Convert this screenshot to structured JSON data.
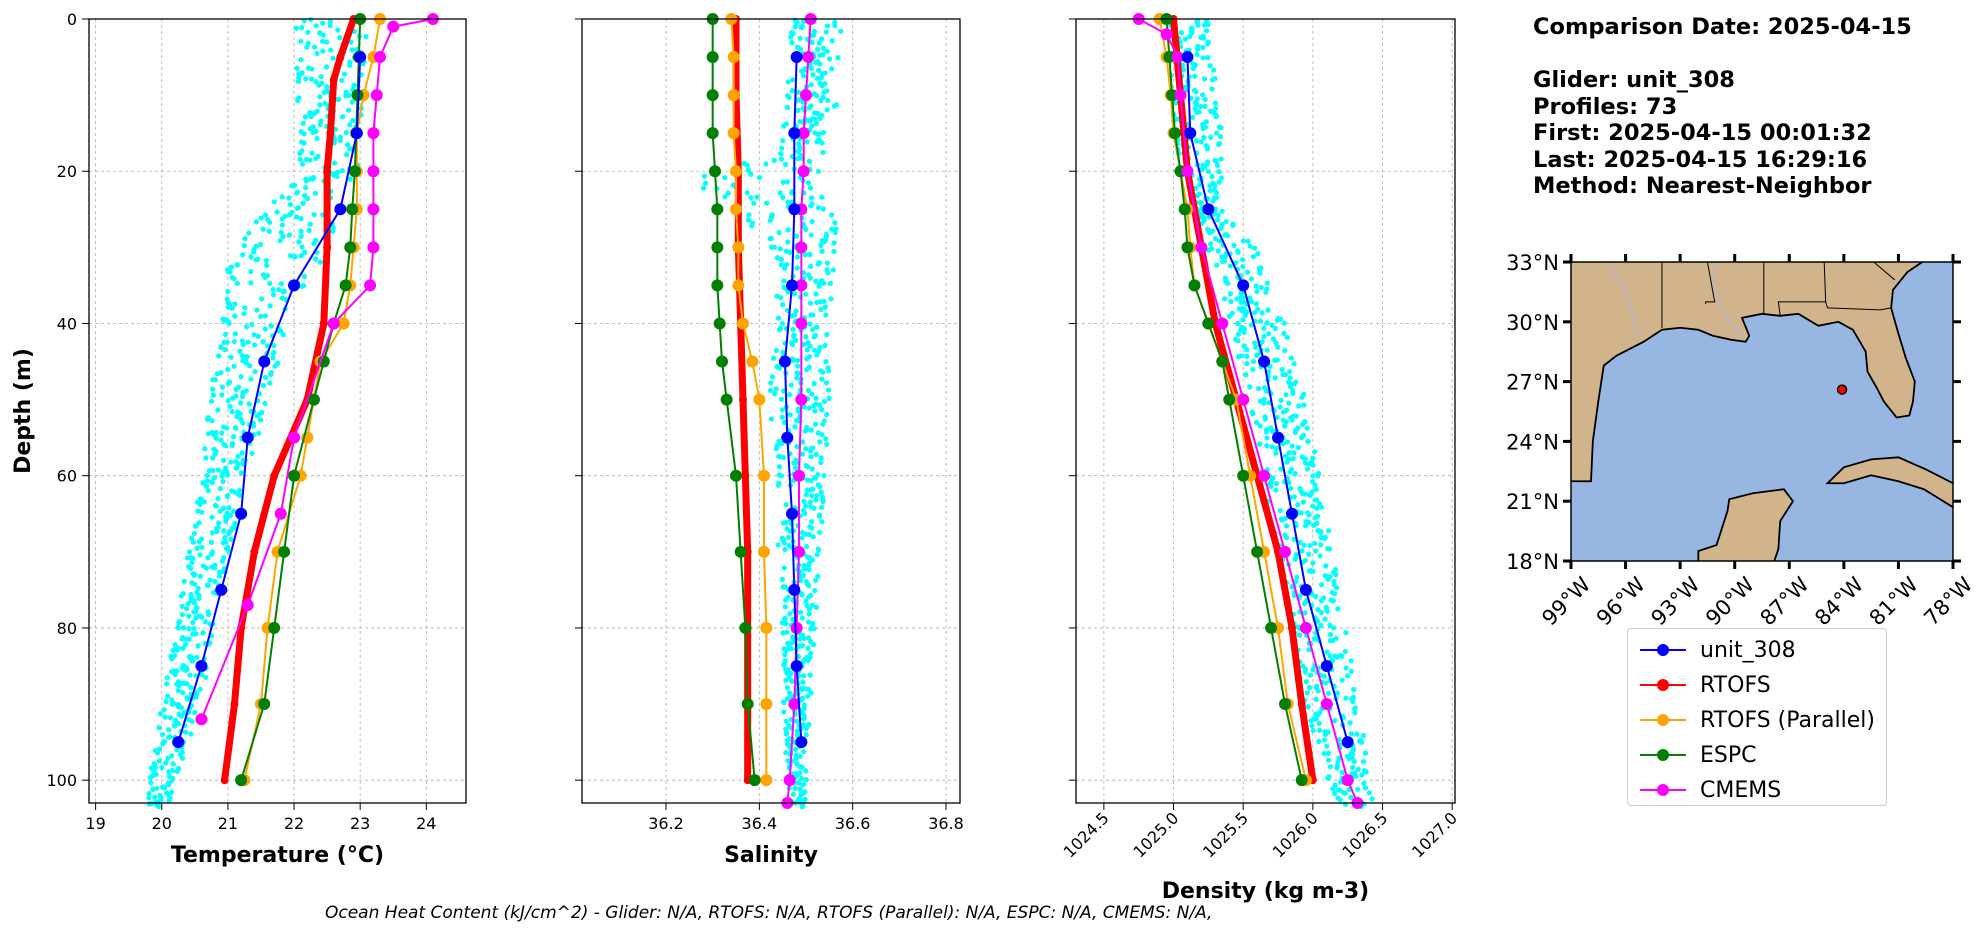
{
  "chart_data": [
    {
      "type": "line",
      "xlabel": "Temperature (°C)",
      "ylabel": "Depth (m)",
      "xlim": [
        18.9,
        24.6
      ],
      "ylim": [
        103,
        0
      ],
      "xticks": [
        19,
        20,
        21,
        22,
        23,
        24
      ],
      "yticks": [
        0,
        20,
        40,
        60,
        80,
        100
      ],
      "grid": true,
      "glider_scatter_envelope": {
        "depth": [
          0,
          20,
          30,
          40,
          50,
          60,
          70,
          80,
          90,
          100,
          103
        ],
        "min": [
          22.0,
          22.1,
          21.0,
          20.9,
          20.7,
          20.6,
          20.4,
          20.2,
          20.0,
          19.8,
          19.7
        ],
        "max": [
          23.1,
          23.0,
          22.5,
          21.9,
          21.6,
          21.3,
          21.0,
          20.8,
          20.6,
          20.2,
          20.1
        ]
      },
      "series": [
        {
          "name": "unit_308",
          "depth": [
            5,
            15,
            25,
            35,
            45,
            55,
            65,
            75,
            85,
            95
          ],
          "values": [
            23.0,
            22.95,
            22.7,
            22.0,
            21.55,
            21.3,
            21.2,
            20.9,
            20.6,
            20.25
          ]
        },
        {
          "name": "RTOFS",
          "depth": [
            0,
            5,
            8,
            15,
            20,
            30,
            40,
            50,
            60,
            70,
            80,
            90,
            100
          ],
          "values": [
            22.9,
            22.7,
            22.6,
            22.55,
            22.5,
            22.5,
            22.45,
            22.2,
            21.7,
            21.4,
            21.2,
            21.1,
            20.95
          ]
        },
        {
          "name": "RTOFS (Parallel)",
          "depth": [
            0,
            5,
            10,
            15,
            20,
            25,
            30,
            35,
            40,
            45,
            50,
            55,
            60,
            70,
            80,
            90,
            100
          ],
          "values": [
            23.3,
            23.2,
            23.05,
            22.95,
            22.95,
            22.95,
            22.9,
            22.85,
            22.75,
            22.4,
            22.3,
            22.2,
            22.1,
            21.75,
            21.6,
            21.5,
            21.25
          ]
        },
        {
          "name": "ESPC",
          "depth": [
            0,
            5,
            10,
            15,
            20,
            25,
            30,
            35,
            40,
            45,
            50,
            60,
            70,
            80,
            90,
            100
          ],
          "values": [
            23.0,
            22.98,
            22.96,
            22.94,
            22.92,
            22.88,
            22.85,
            22.78,
            22.6,
            22.45,
            22.3,
            22.0,
            21.85,
            21.7,
            21.55,
            21.2
          ]
        },
        {
          "name": "CMEMS",
          "depth": [
            0,
            1,
            5,
            10,
            15,
            20,
            25,
            30,
            35,
            40,
            55,
            65,
            77,
            92
          ],
          "values": [
            24.1,
            23.5,
            23.3,
            23.25,
            23.2,
            23.2,
            23.2,
            23.2,
            23.15,
            22.6,
            22.0,
            21.8,
            21.3,
            20.6
          ]
        }
      ]
    },
    {
      "type": "line",
      "xlabel": "Salinity",
      "xlim": [
        36.02,
        36.83
      ],
      "ylim": [
        103,
        0
      ],
      "xticks": [
        36.2,
        36.4,
        36.6,
        36.8
      ],
      "yticks": [
        0,
        20,
        40,
        60,
        80,
        100
      ],
      "grid": true,
      "glider_scatter_envelope": {
        "depth": [
          0,
          17,
          20,
          22,
          25,
          30,
          35,
          40,
          50,
          60,
          70,
          80,
          90,
          100,
          103
        ],
        "min": [
          36.47,
          36.44,
          36.28,
          36.28,
          36.36,
          36.43,
          36.44,
          36.43,
          36.42,
          36.44,
          36.44,
          36.45,
          36.45,
          36.46,
          36.47
        ],
        "max": [
          36.58,
          36.56,
          36.57,
          36.57,
          36.57,
          36.57,
          36.56,
          36.55,
          36.55,
          36.54,
          36.53,
          36.52,
          36.51,
          36.5,
          36.5
        ]
      },
      "series": [
        {
          "name": "unit_308",
          "depth": [
            5,
            15,
            25,
            35,
            45,
            55,
            65,
            75,
            85,
            95
          ],
          "values": [
            36.48,
            36.475,
            36.475,
            36.47,
            36.455,
            36.46,
            36.47,
            36.475,
            36.48,
            36.49
          ]
        },
        {
          "name": "RTOFS",
          "depth": [
            0,
            10,
            20,
            30,
            40,
            50,
            60,
            70,
            80,
            90,
            100
          ],
          "values": [
            36.35,
            36.35,
            36.355,
            36.355,
            36.36,
            36.365,
            36.37,
            36.375,
            36.375,
            36.375,
            36.375
          ]
        },
        {
          "name": "RTOFS (Parallel)",
          "depth": [
            0,
            5,
            10,
            15,
            20,
            25,
            30,
            35,
            40,
            45,
            50,
            60,
            70,
            80,
            90,
            100
          ],
          "values": [
            36.34,
            36.345,
            36.345,
            36.345,
            36.35,
            36.35,
            36.355,
            36.355,
            36.365,
            36.385,
            36.4,
            36.41,
            36.41,
            36.415,
            36.415,
            36.415
          ]
        },
        {
          "name": "ESPC",
          "depth": [
            0,
            5,
            10,
            15,
            20,
            25,
            30,
            35,
            40,
            45,
            50,
            60,
            70,
            80,
            90,
            100
          ],
          "values": [
            36.3,
            36.3,
            36.3,
            36.3,
            36.305,
            36.31,
            36.31,
            36.31,
            36.315,
            36.32,
            36.33,
            36.35,
            36.36,
            36.37,
            36.375,
            36.39
          ]
        },
        {
          "name": "CMEMS",
          "depth": [
            0,
            5,
            10,
            15,
            20,
            25,
            30,
            35,
            40,
            50,
            60,
            70,
            80,
            90,
            100,
            103
          ],
          "values": [
            36.51,
            36.505,
            36.5,
            36.495,
            36.495,
            36.49,
            36.49,
            36.49,
            36.49,
            36.49,
            36.485,
            36.485,
            36.48,
            36.475,
            36.465,
            36.46
          ]
        }
      ]
    },
    {
      "type": "line",
      "xlabel": "Density (kg m-3)",
      "xlim": [
        1024.3,
        1027.02
      ],
      "ylim": [
        103,
        0
      ],
      "xticks": [
        1024.5,
        1025.0,
        1025.5,
        1026.0,
        1026.5,
        1027.0
      ],
      "yticks": [
        0,
        20,
        40,
        60,
        80,
        100
      ],
      "grid": true,
      "glider_scatter_envelope": {
        "depth": [
          0,
          5,
          10,
          15,
          20,
          25,
          30,
          40,
          50,
          60,
          70,
          80,
          90,
          100,
          103
        ],
        "min": [
          1024.95,
          1024.97,
          1024.98,
          1025.0,
          1025.05,
          1025.15,
          1025.25,
          1025.4,
          1025.55,
          1025.65,
          1025.75,
          1025.85,
          1025.95,
          1026.1,
          1026.2
        ],
        "max": [
          1025.25,
          1025.3,
          1025.32,
          1025.35,
          1025.35,
          1025.35,
          1025.6,
          1025.8,
          1025.95,
          1026.05,
          1026.15,
          1026.25,
          1026.35,
          1026.4,
          1026.45
        ]
      },
      "series": [
        {
          "name": "unit_308",
          "depth": [
            5,
            15,
            25,
            35,
            45,
            55,
            65,
            75,
            85,
            95
          ],
          "values": [
            1025.1,
            1025.12,
            1025.25,
            1025.5,
            1025.65,
            1025.75,
            1025.85,
            1025.95,
            1026.1,
            1026.25
          ]
        },
        {
          "name": "RTOFS",
          "depth": [
            0,
            10,
            20,
            30,
            40,
            50,
            60,
            70,
            80,
            90,
            100
          ],
          "values": [
            1025.0,
            1025.05,
            1025.1,
            1025.2,
            1025.3,
            1025.45,
            1025.6,
            1025.75,
            1025.85,
            1025.92,
            1026.0
          ]
        },
        {
          "name": "RTOFS (Parallel)",
          "depth": [
            0,
            5,
            10,
            15,
            20,
            25,
            30,
            35,
            40,
            45,
            50,
            60,
            70,
            80,
            90,
            100
          ],
          "values": [
            1024.9,
            1024.95,
            1024.98,
            1025.0,
            1025.05,
            1025.1,
            1025.12,
            1025.15,
            1025.25,
            1025.35,
            1025.45,
            1025.55,
            1025.65,
            1025.75,
            1025.82,
            1025.95
          ]
        },
        {
          "name": "ESPC",
          "depth": [
            0,
            5,
            10,
            15,
            20,
            25,
            30,
            35,
            40,
            45,
            50,
            60,
            70,
            80,
            90,
            100
          ],
          "values": [
            1024.95,
            1024.97,
            1024.99,
            1025.01,
            1025.05,
            1025.08,
            1025.1,
            1025.15,
            1025.25,
            1025.35,
            1025.4,
            1025.5,
            1025.6,
            1025.7,
            1025.8,
            1025.92
          ]
        },
        {
          "name": "CMEMS",
          "depth": [
            0,
            2,
            5,
            10,
            20,
            30,
            40,
            50,
            60,
            70,
            80,
            90,
            100,
            103
          ],
          "values": [
            1024.75,
            1024.95,
            1025.03,
            1025.05,
            1025.1,
            1025.2,
            1025.35,
            1025.5,
            1025.65,
            1025.8,
            1025.95,
            1026.1,
            1026.25,
            1026.32
          ]
        }
      ]
    }
  ],
  "colors": {
    "unit_308": "#0000ff",
    "RTOFS": "#ff0000",
    "RTOFS (Parallel)": "#ffa500",
    "ESPC": "#008000",
    "CMEMS": "#ff00ff",
    "glider_scatter": "#00ffff",
    "land": "#d2b48c",
    "ocean": "#97b6e1"
  },
  "info": {
    "comparison_date": "Comparison Date: 2025-04-15",
    "glider": "Glider: unit_308",
    "profiles": "Profiles: 73",
    "first": "First: 2025-04-15 00:01:32",
    "last": "Last: 2025-04-15 16:29:16",
    "method": "Method: Nearest-Neighbor"
  },
  "map": {
    "lat_labels": [
      "33°N",
      "30°N",
      "27°N",
      "24°N",
      "21°N",
      "18°N"
    ],
    "lon_labels": [
      "99°W",
      "96°W",
      "93°W",
      "90°W",
      "87°W",
      "84°W",
      "81°W",
      "78°W"
    ],
    "lon_range": [
      -99,
      -78
    ],
    "lat_range": [
      18,
      33
    ],
    "glider_position": {
      "lon": -84.1,
      "lat": 26.6
    }
  },
  "legend": {
    "items": [
      "unit_308",
      "RTOFS",
      "RTOFS (Parallel)",
      "ESPC",
      "CMEMS"
    ]
  },
  "footer": "Ocean Heat Content (kJ/cm^2) - Glider: N/A,  RTOFS: N/A,  RTOFS (Parallel): N/A,  ESPC: N/A,  CMEMS: N/A,"
}
